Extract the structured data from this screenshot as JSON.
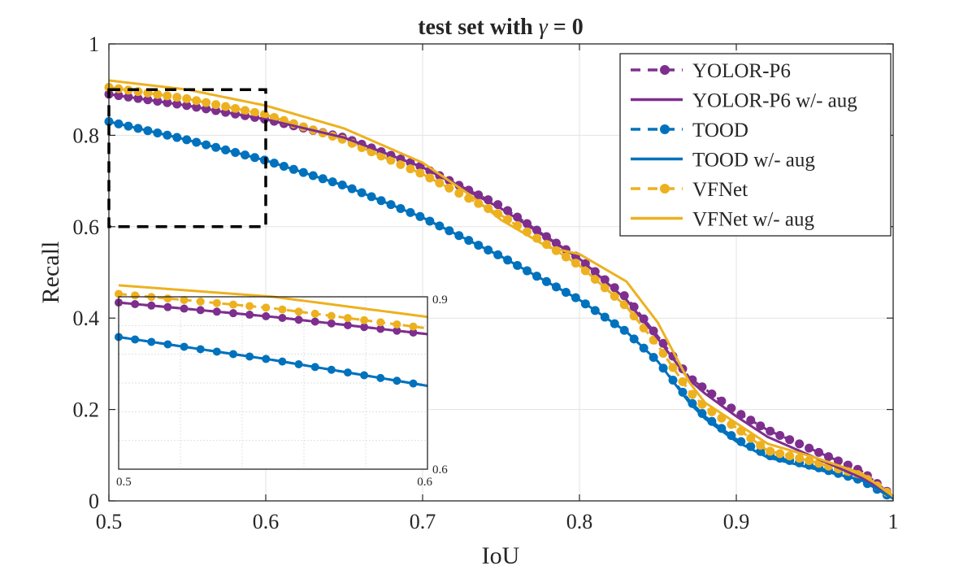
{
  "chart_data": {
    "type": "line",
    "title_prefix": "test set with ",
    "title_symbol": "γ",
    "title_suffix": " = 0",
    "xlabel": "IoU",
    "ylabel": "Recall",
    "xlim": [
      0.5,
      1.0
    ],
    "ylim": [
      0,
      1
    ],
    "xticks": [
      0.5,
      0.6,
      0.7,
      0.8,
      0.9,
      1
    ],
    "xtick_labels": [
      "0.5",
      "0.6",
      "0.7",
      "0.8",
      "0.9",
      "1"
    ],
    "yticks": [
      0,
      0.2,
      0.4,
      0.6,
      0.8,
      1
    ],
    "ytick_labels": [
      "0",
      "0.2",
      "0.4",
      "0.6",
      "0.8",
      "1"
    ],
    "grid": true,
    "legend_position": "top-right",
    "series": [
      {
        "name": "YOLOR-P6",
        "color": "#7E2F8E",
        "style": "dashed-dots",
        "x": [
          0.5,
          0.55,
          0.6,
          0.65,
          0.7,
          0.75,
          0.8,
          0.83,
          0.85,
          0.87,
          0.88,
          0.9,
          0.92,
          0.95,
          0.98,
          1.0
        ],
        "y": [
          0.89,
          0.865,
          0.835,
          0.795,
          0.73,
          0.645,
          0.53,
          0.445,
          0.36,
          0.27,
          0.245,
          0.195,
          0.155,
          0.11,
          0.065,
          0.01
        ]
      },
      {
        "name": "YOLOR-P6 w/- aug",
        "color": "#7E2F8E",
        "style": "solid",
        "x": [
          0.5,
          0.55,
          0.6,
          0.65,
          0.7,
          0.75,
          0.8,
          0.83,
          0.85,
          0.87,
          0.88,
          0.9,
          0.92,
          0.95,
          0.98,
          1.0
        ],
        "y": [
          0.89,
          0.865,
          0.835,
          0.795,
          0.73,
          0.64,
          0.53,
          0.44,
          0.355,
          0.265,
          0.235,
          0.185,
          0.14,
          0.095,
          0.05,
          0.01
        ]
      },
      {
        "name": "TOOD",
        "color": "#0072BD",
        "style": "dashed-dots",
        "x": [
          0.5,
          0.55,
          0.6,
          0.65,
          0.7,
          0.75,
          0.8,
          0.83,
          0.85,
          0.87,
          0.88,
          0.9,
          0.92,
          0.95,
          0.98,
          1.0
        ],
        "y": [
          0.83,
          0.79,
          0.745,
          0.69,
          0.62,
          0.535,
          0.44,
          0.37,
          0.305,
          0.22,
          0.185,
          0.135,
          0.1,
          0.075,
          0.045,
          0.005
        ]
      },
      {
        "name": "TOOD w/- aug",
        "color": "#0072BD",
        "style": "solid",
        "x": [
          0.5,
          0.55,
          0.6,
          0.65,
          0.7,
          0.75,
          0.8,
          0.83,
          0.85,
          0.87,
          0.88,
          0.9,
          0.92,
          0.95,
          0.98,
          1.0
        ],
        "y": [
          0.83,
          0.79,
          0.745,
          0.69,
          0.62,
          0.535,
          0.44,
          0.37,
          0.305,
          0.215,
          0.18,
          0.13,
          0.095,
          0.07,
          0.045,
          0.005
        ]
      },
      {
        "name": "VFNet",
        "color": "#EDB120",
        "style": "dashed-dots",
        "x": [
          0.5,
          0.55,
          0.6,
          0.65,
          0.7,
          0.75,
          0.8,
          0.83,
          0.85,
          0.87,
          0.88,
          0.9,
          0.92,
          0.95,
          0.98,
          1.0
        ],
        "y": [
          0.905,
          0.88,
          0.845,
          0.79,
          0.715,
          0.625,
          0.515,
          0.425,
          0.34,
          0.24,
          0.205,
          0.16,
          0.11,
          0.085,
          0.055,
          0.01
        ]
      },
      {
        "name": "VFNet w/- aug",
        "color": "#EDB120",
        "style": "solid",
        "x": [
          0.5,
          0.55,
          0.6,
          0.65,
          0.7,
          0.73,
          0.75,
          0.78,
          0.8,
          0.83,
          0.85,
          0.87,
          0.88,
          0.9,
          0.92,
          0.95,
          0.98,
          1.0
        ],
        "y": [
          0.92,
          0.9,
          0.865,
          0.815,
          0.74,
          0.67,
          0.615,
          0.555,
          0.54,
          0.48,
          0.39,
          0.26,
          0.215,
          0.17,
          0.125,
          0.095,
          0.06,
          0.01
        ]
      }
    ],
    "zoom_region": {
      "xlim": [
        0.5,
        0.6
      ],
      "ylim": [
        0.6,
        0.9
      ]
    },
    "inset": {
      "xlim": [
        0.5,
        0.6
      ],
      "ylim": [
        0.6,
        0.9
      ],
      "xtick_labels": [
        "0.5",
        "0.6"
      ],
      "ytick_labels": [
        "0.6",
        "0.9"
      ]
    }
  }
}
